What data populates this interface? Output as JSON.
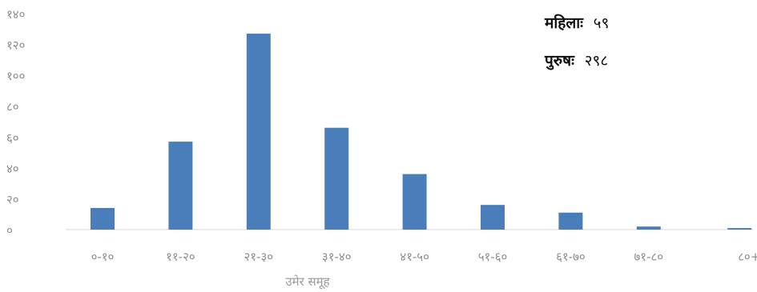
{
  "chart_data": {
    "type": "bar",
    "categories": [
      "०-१०",
      "११-२०",
      "२१-३०",
      "३१-४०",
      "४१-५०",
      "५१-६०",
      "६१-७०",
      "७१-८०",
      "८०+"
    ],
    "values": [
      14,
      57,
      127,
      66,
      36,
      16,
      11,
      2,
      1
    ],
    "ylim": [
      0,
      140
    ],
    "yticks": [
      0,
      20,
      40,
      60,
      80,
      100,
      120,
      140
    ],
    "ytick_labels": [
      "०",
      "२०",
      "४०",
      "६०",
      "८०",
      "१००",
      "१२०",
      "१४०"
    ],
    "xlabel": "उमेर समूह",
    "ylabel": "",
    "grid": false,
    "bar_color": "#4a7ebb",
    "annotations": [
      {
        "label": "महिलाः",
        "value": "५९"
      },
      {
        "label": "पुरुषः",
        "value": "२९८"
      }
    ]
  }
}
